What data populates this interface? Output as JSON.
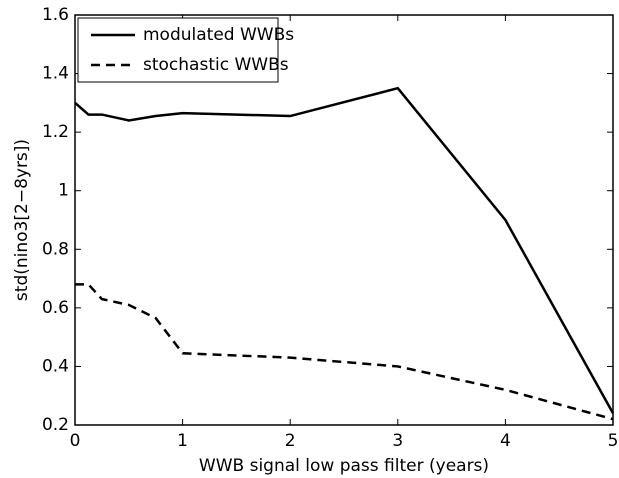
{
  "chart_data": {
    "type": "line",
    "xlabel": "WWB signal low pass filter (years)",
    "ylabel": "std(nino3[2−8yrs])",
    "x": [
      0,
      0.125,
      0.25,
      0.5,
      0.75,
      1,
      2,
      3,
      4,
      5
    ],
    "series": [
      {
        "name": "modulated WWBs",
        "color": "#000000",
        "dash": "solid",
        "values": [
          1.3,
          1.26,
          1.26,
          1.24,
          1.255,
          1.265,
          1.255,
          1.35,
          0.9,
          0.24
        ]
      },
      {
        "name": "stochastic WWBs",
        "color": "#000000",
        "dash": "dashed",
        "values": [
          0.68,
          0.68,
          0.63,
          0.61,
          0.565,
          0.445,
          0.43,
          0.4,
          0.32,
          0.22
        ]
      }
    ],
    "xlim": [
      0,
      5
    ],
    "xticks": [
      0,
      1,
      2,
      3,
      4,
      5
    ],
    "ylim": [
      0.2,
      1.6
    ],
    "yticks": [
      0.2,
      0.4,
      0.6,
      0.8,
      1,
      1.2,
      1.4,
      1.6
    ],
    "legend": "upper-left"
  }
}
